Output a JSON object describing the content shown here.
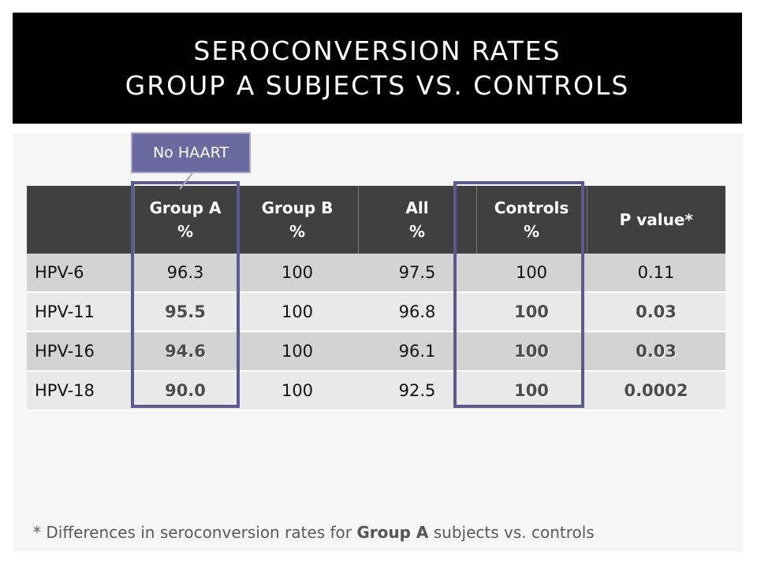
{
  "title": {
    "line1": "SEROCONVERSION RATES",
    "line2": "GROUP A SUBJECTS VS. CONTROLS"
  },
  "callout": {
    "label": "No HAART"
  },
  "table": {
    "headers": [
      {
        "line1": "",
        "line2": ""
      },
      {
        "line1": "Group A",
        "line2": "%"
      },
      {
        "line1": "Group B",
        "line2": "%"
      },
      {
        "line1": "All",
        "line2": "%"
      },
      {
        "line1": "Controls",
        "line2": "%"
      },
      {
        "line1": "P value*",
        "line2": ""
      }
    ],
    "rows": [
      {
        "label": "HPV-6",
        "group_a": "96.3",
        "group_b": "100",
        "all": "97.5",
        "controls": "100",
        "p_value": "0.11"
      },
      {
        "label": "HPV-11",
        "group_a": "95.5",
        "group_b": "100",
        "all": "96.8",
        "controls": "100",
        "p_value": "0.03"
      },
      {
        "label": "HPV-16",
        "group_a": "94.6",
        "group_b": "100",
        "all": "96.1",
        "controls": "100",
        "p_value": "0.03"
      },
      {
        "label": "HPV-18",
        "group_a": "90.0",
        "group_b": "100",
        "all": "92.5",
        "controls": "100",
        "p_value": "0.0002"
      }
    ]
  },
  "footnote": {
    "prefix": "* Differences in seroconversion rates for ",
    "bold": "Group A",
    "suffix": " subjects vs. controls"
  },
  "colors": {
    "title_bg": "#000000",
    "header_bg": "#404040",
    "highlight_border": "#5b5a8e",
    "callout_bg": "#6b6aa0"
  }
}
